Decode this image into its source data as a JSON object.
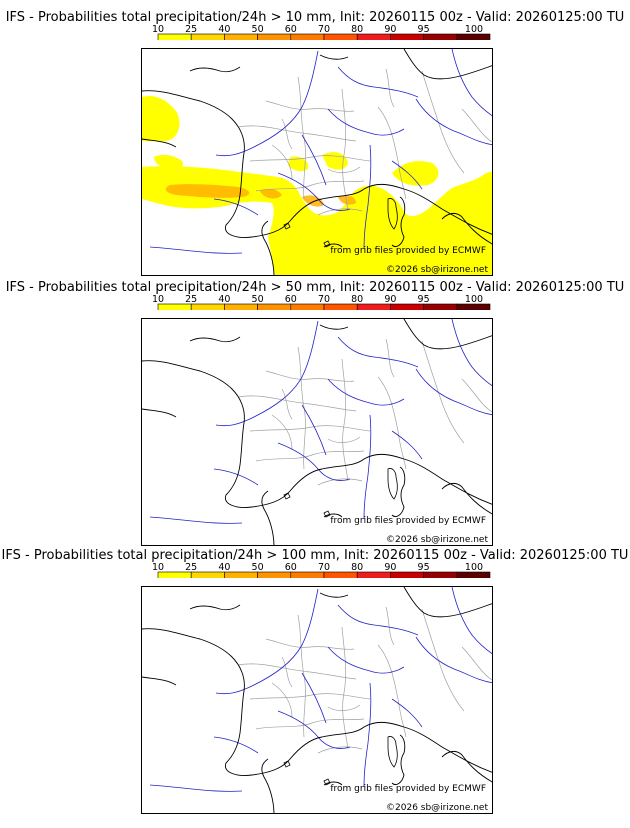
{
  "panels": [
    {
      "title": "IFS - Probabilities total precipitation/24h > 10 mm, Init: 20260115 00z - Valid: 20260125:00 TU",
      "has_precip": true
    },
    {
      "title": "IFS - Probabilities total precipitation/24h > 50 mm, Init: 20260115 00z - Valid: 20260125:00 TU",
      "has_precip": false
    },
    {
      "title": "IFS - Probabilities total precipitation/24h > 100 mm, Init: 20260115 00z - Valid: 20260125:00 TU",
      "has_precip": false
    }
  ],
  "colorbar": {
    "ticks": [
      "10",
      "25",
      "40",
      "50",
      "60",
      "70",
      "80",
      "90",
      "95",
      "100"
    ],
    "colors": [
      "#ffff00",
      "#ffd700",
      "#ffb000",
      "#ff9200",
      "#ff7a00",
      "#ff5500",
      "#ee1c1c",
      "#c80000",
      "#960000",
      "#5a0000"
    ]
  },
  "credits": {
    "source": "from grib files provided by ECMWF",
    "copyright": "©2026 sb@irizone.net"
  },
  "colors": {
    "coast": "#000000",
    "rivers": "#2323c8",
    "borders": "#a0a0a0",
    "precip": "#ffff00",
    "precip_strong": "#ffb000"
  }
}
